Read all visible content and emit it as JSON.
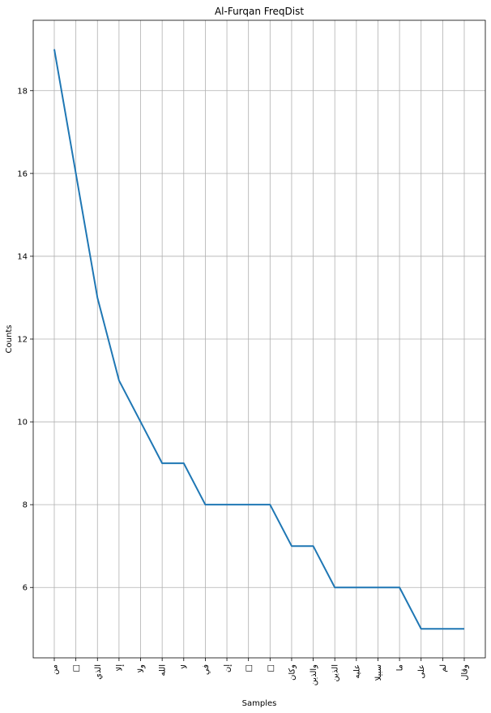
{
  "chart_data": {
    "type": "line",
    "title": "Al-Furqan FreqDist",
    "xlabel": "Samples",
    "ylabel": "Counts",
    "categories": [
      "من",
      "□",
      "الذي",
      "إلا",
      "ولا",
      "الله",
      "لا",
      "في",
      "إن",
      "□",
      "□",
      "وكان",
      "والذين",
      "الذين",
      "عليه",
      "سبيلا",
      "ما",
      "على",
      "لم",
      "وقال"
    ],
    "values": [
      19,
      16,
      13,
      11,
      10,
      9,
      9,
      8,
      8,
      8,
      8,
      7,
      7,
      6,
      6,
      6,
      6,
      5,
      5,
      5
    ],
    "yticks": [
      6,
      8,
      10,
      12,
      14,
      16,
      18
    ],
    "ylim": [
      4.3,
      19.7
    ],
    "grid": true,
    "line_color": "#1f77b4"
  }
}
